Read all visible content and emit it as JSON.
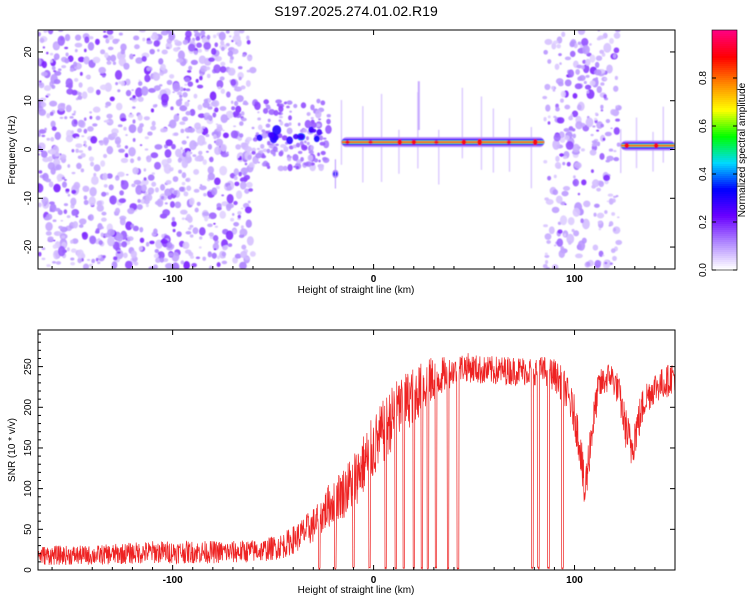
{
  "chart_data": [
    {
      "type": "heatmap",
      "title": "S197.2025.274.01.02.R19",
      "xlabel": "Height of straight line (km)",
      "ylabel": "Frequency (Hz)",
      "xlim": [
        -167,
        150
      ],
      "ylim": [
        -24.5,
        24.5
      ],
      "xticks": [
        -100,
        0,
        100
      ],
      "yticks": [
        20,
        10,
        0,
        -10,
        -20
      ],
      "colorbar": {
        "label": "Normalized spectral amplitude",
        "range": [
          0,
          1
        ],
        "ticks": [
          "0.0",
          "0.2",
          "0.4",
          "0.6",
          "0.8"
        ],
        "colormap": [
          "#ffffff",
          "#b088ff",
          "#6a00ff",
          "#0000ff",
          "#00d9ff",
          "#00ff00",
          "#ffff00",
          "#ff8800",
          "#ff0000",
          "#ff0080"
        ]
      },
      "regions": [
        {
          "x": [
            -167,
            -60
          ],
          "type": "noise",
          "density": 0.55
        },
        {
          "x": [
            -60,
            -22
          ],
          "type": "clusters",
          "freq": 3
        },
        {
          "x": [
            -20,
            -18
          ],
          "type": "spike",
          "freq": -5
        },
        {
          "x": [
            -16,
            85
          ],
          "type": "line",
          "freq": 1.5,
          "peak": 0.9
        },
        {
          "x": [
            85,
            122
          ],
          "type": "noise",
          "density": 0.45
        },
        {
          "x": [
            123,
            150
          ],
          "type": "line",
          "freq": 0.8,
          "peak": 0.85
        }
      ]
    },
    {
      "type": "line",
      "title": "",
      "xlabel": "Height of straight line (km)",
      "ylabel": "SNR (10 * v/v)",
      "xlim": [
        -167,
        150
      ],
      "ylim": [
        0,
        295
      ],
      "xticks": [
        -100,
        0,
        100
      ],
      "yticks": [
        0,
        50,
        100,
        150,
        200,
        250
      ],
      "color": "#ee2222",
      "series": [
        {
          "name": "SNR",
          "x": [
            -167,
            -140,
            -110,
            -90,
            -70,
            -55,
            -45,
            -38,
            -30,
            -25,
            -22,
            -18,
            -15,
            -10,
            -5,
            0,
            5,
            10,
            15,
            20,
            25,
            30,
            35,
            40,
            45,
            55,
            65,
            75,
            85,
            90,
            95,
            100,
            103,
            105,
            108,
            112,
            118,
            122,
            125,
            128,
            131,
            135,
            140,
            145,
            150
          ],
          "values": [
            18,
            18,
            22,
            22,
            22,
            24,
            30,
            40,
            55,
            70,
            80,
            90,
            95,
            110,
            130,
            150,
            170,
            190,
            205,
            215,
            225,
            235,
            240,
            245,
            250,
            245,
            245,
            245,
            245,
            240,
            225,
            190,
            150,
            90,
            160,
            225,
            240,
            220,
            180,
            150,
            175,
            210,
            225,
            230,
            240
          ],
          "noise": [
            12,
            12,
            14,
            14,
            14,
            14,
            16,
            18,
            22,
            25,
            28,
            30,
            32,
            35,
            38,
            40,
            40,
            40,
            38,
            35,
            32,
            28,
            22,
            18,
            18,
            18,
            18,
            18,
            18,
            20,
            22,
            25,
            28,
            30,
            28,
            20,
            18,
            20,
            25,
            30,
            28,
            22,
            20,
            20,
            20
          ]
        }
      ],
      "dropouts": [
        -27,
        -19,
        -10,
        -2,
        6,
        11,
        15,
        20,
        24,
        27,
        31,
        37,
        42,
        79,
        82,
        87,
        94
      ]
    }
  ]
}
